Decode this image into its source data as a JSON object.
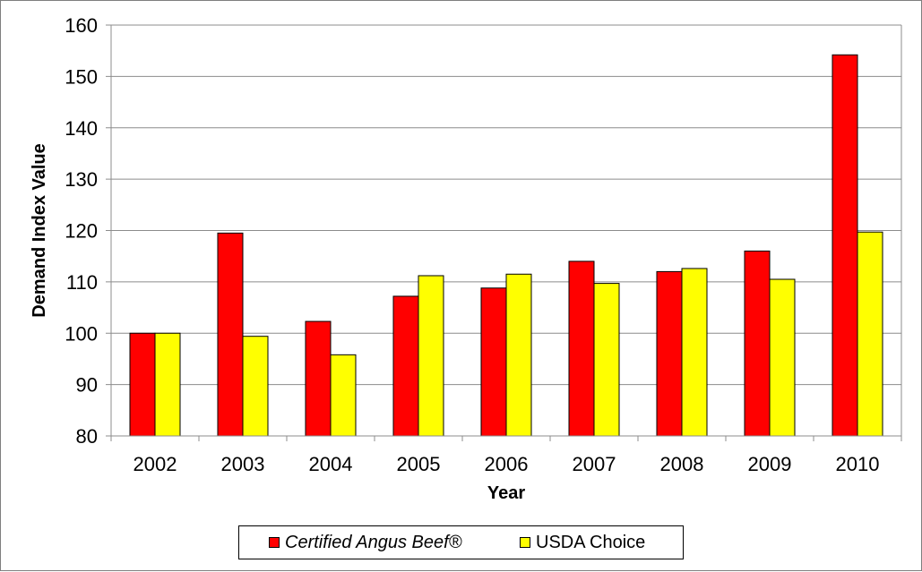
{
  "chart_data": {
    "type": "bar",
    "categories": [
      "2002",
      "2003",
      "2004",
      "2005",
      "2006",
      "2007",
      "2008",
      "2009",
      "2010"
    ],
    "series": [
      {
        "name": "Certified Angus Beef®",
        "color": "#ff0000",
        "values": [
          100,
          119.5,
          102.3,
          107.2,
          108.8,
          114.0,
          112.0,
          116.0,
          154.2
        ]
      },
      {
        "name": "USDA Choice",
        "color": "#ffff00",
        "values": [
          100,
          99.4,
          95.8,
          111.2,
          111.5,
          109.7,
          112.6,
          110.5,
          119.7
        ]
      }
    ],
    "xlabel": "Year",
    "ylabel": "Demand Index Value",
    "ylim": [
      80,
      160
    ],
    "yticks": [
      80,
      90,
      100,
      110,
      120,
      130,
      140,
      150,
      160
    ],
    "grid": true,
    "legend_position": "bottom"
  }
}
